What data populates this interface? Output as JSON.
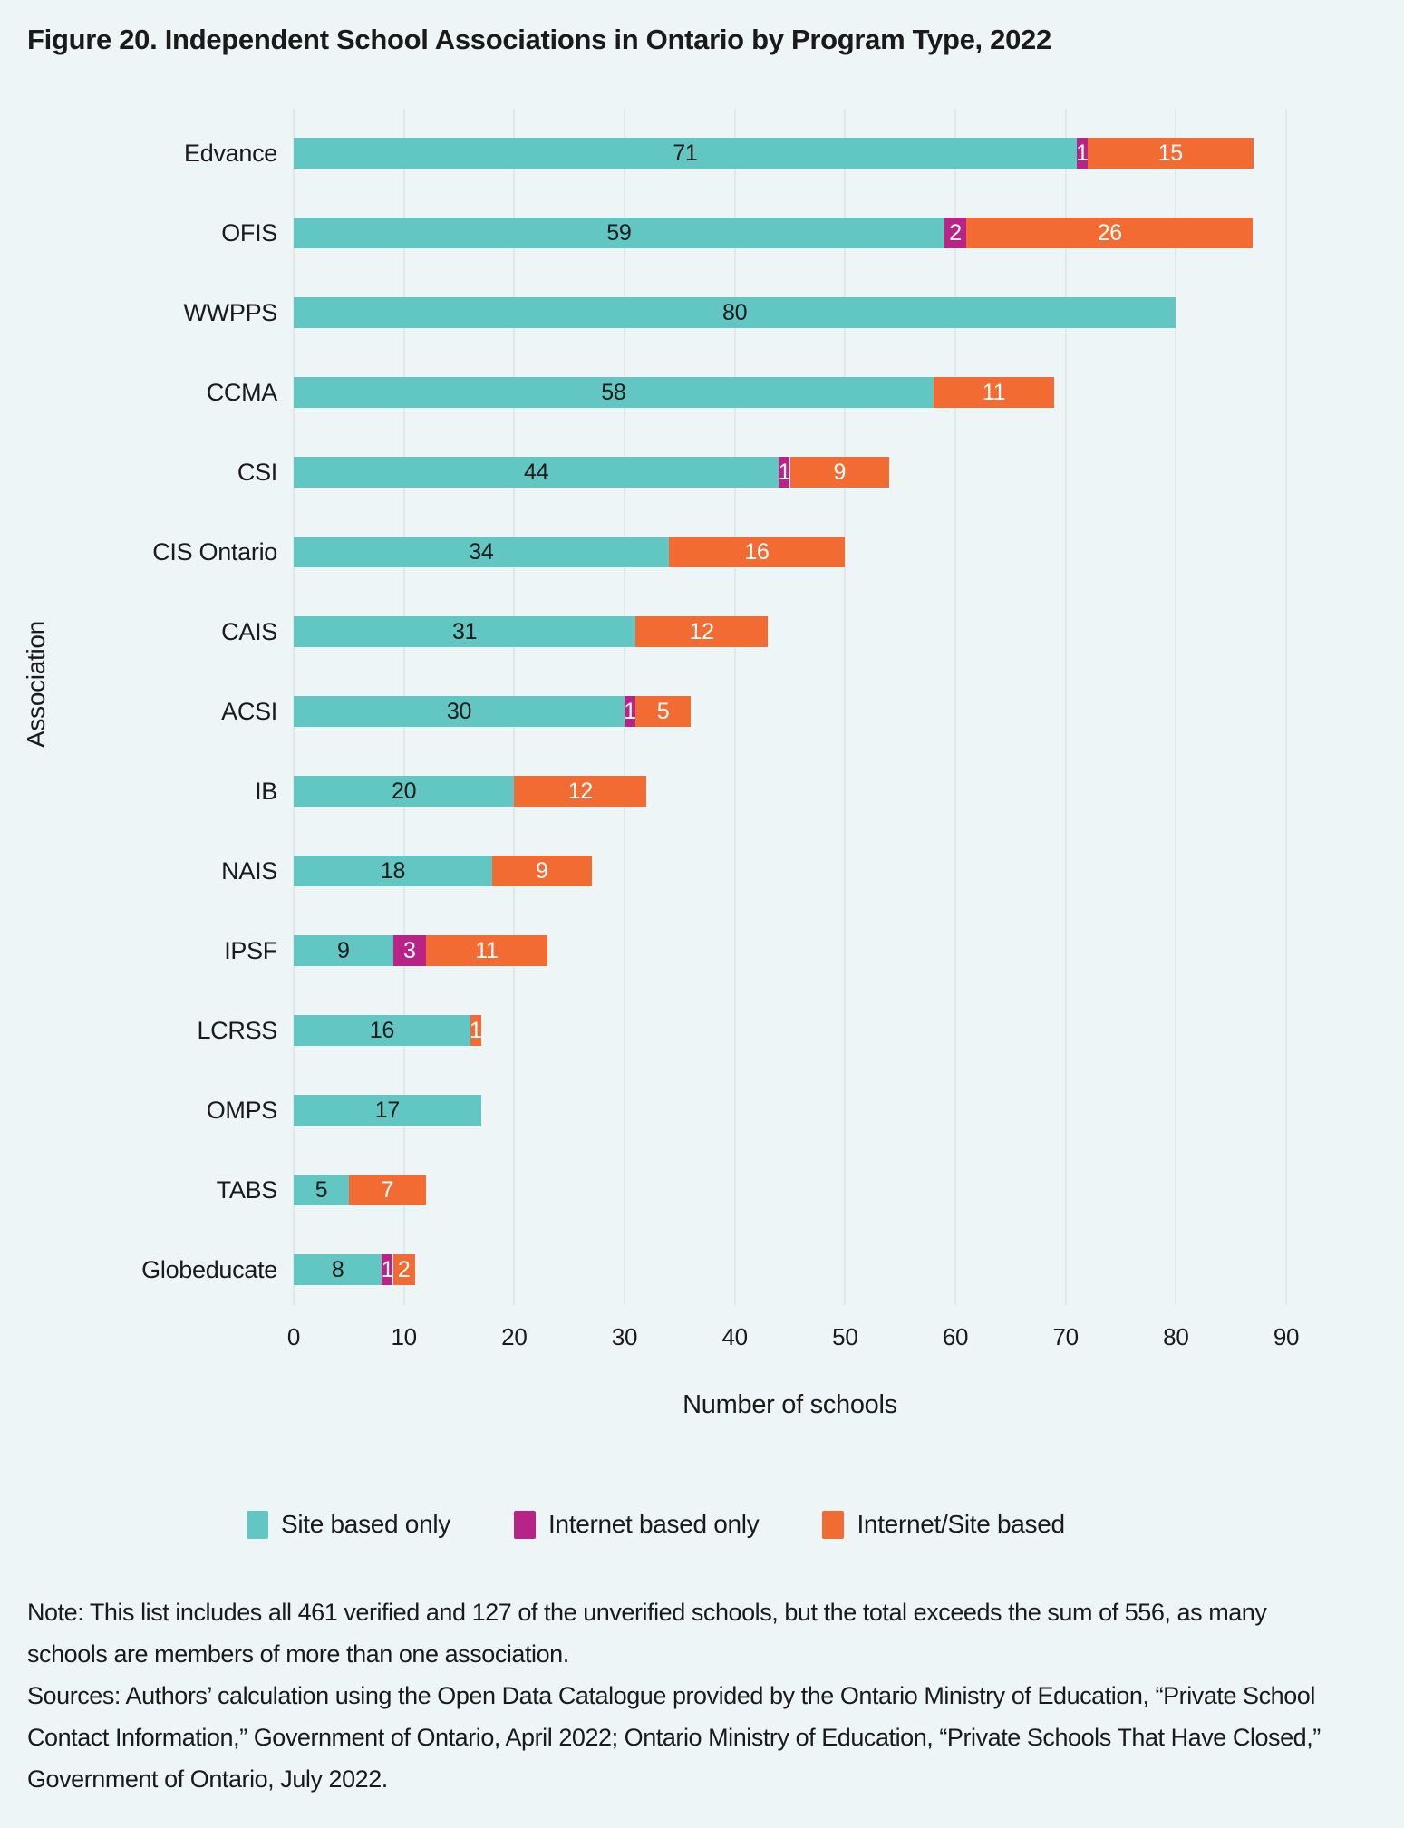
{
  "figure": {
    "note": "Note: This list includes all 461 verified and 127 of the unverified schools, but the total exceeds the sum of 556, as many schools are members of more than one association.",
    "sources": "Sources: Authors’ calculation using the Open Data Catalogue provided by the Ontario Ministry of Education, “Private School Contact Information,” Government of Ontario, April 2022; Ontario Ministry of Education, “Private Schools That Have Closed,” Government of Ontario, July 2022."
  },
  "chart_data": {
    "type": "bar",
    "orientation": "horizontal",
    "stacked": true,
    "title": "Figure 20. Independent School Associations in Ontario by Program Type, 2022",
    "xlabel": "Number of schools",
    "ylabel": "Association",
    "xlim": [
      0,
      90
    ],
    "xticks": [
      0,
      10,
      20,
      30,
      40,
      50,
      60,
      70,
      80,
      90
    ],
    "grid": "vertical",
    "legend_position": "bottom",
    "categories": [
      "Edvance",
      "OFIS",
      "WWPPS",
      "CCMA",
      "CSI",
      "CIS Ontario",
      "CAIS",
      "ACSI",
      "IB",
      "NAIS",
      "IPSF",
      "LCRSS",
      "OMPS",
      "TABS",
      "Globeducate"
    ],
    "series": [
      {
        "name": "Site based only",
        "color": "#62C6C3",
        "label_color": "#1A1A1A",
        "values": [
          71,
          59,
          80,
          58,
          44,
          34,
          31,
          30,
          20,
          18,
          9,
          16,
          17,
          5,
          8
        ]
      },
      {
        "name": "Internet based only",
        "color": "#B72486",
        "label_color": "#FFFFFF",
        "values": [
          1,
          2,
          0,
          0,
          1,
          0,
          0,
          1,
          0,
          0,
          3,
          0,
          0,
          0,
          1
        ]
      },
      {
        "name": "Internet/Site based",
        "color": "#F26B32",
        "label_color": "#FFFFFF",
        "values": [
          15,
          26,
          0,
          11,
          9,
          16,
          12,
          5,
          12,
          9,
          11,
          1,
          0,
          7,
          2
        ]
      }
    ],
    "colors": {
      "background": "#EDF5F6",
      "grid": "#E0E8E9",
      "text": "#1A1A1A"
    }
  }
}
